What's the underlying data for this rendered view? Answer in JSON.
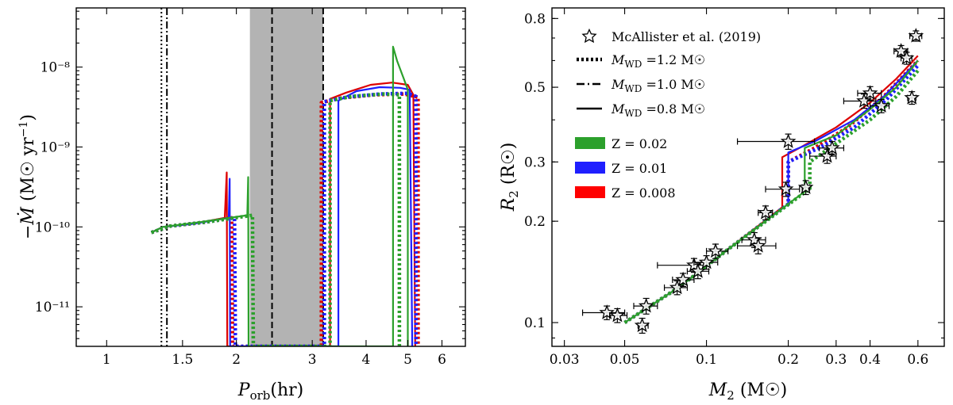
{
  "chart_data": [
    {
      "type": "line",
      "xlabel": "P_orb (hr)",
      "ylabel": "-Ṁ (M☉ yr⁻¹)",
      "xscale": "log",
      "yscale": "log",
      "xlim": [
        0.85,
        6.8
      ],
      "ylim": [
        3.2e-12,
        5.5e-08
      ],
      "x_ticks": [
        {
          "v": 1,
          "label": "1"
        },
        {
          "v": 1.5,
          "label": "1.5"
        },
        {
          "v": 2,
          "label": "2"
        },
        {
          "v": 3,
          "label": "3"
        },
        {
          "v": 4,
          "label": "4"
        },
        {
          "v": 5,
          "label": "5"
        },
        {
          "v": 6,
          "label": "6"
        }
      ],
      "y_ticks": [
        {
          "v": 1e-11,
          "label": "10⁻¹¹"
        },
        {
          "v": 1e-10,
          "label": "10⁻¹⁰"
        },
        {
          "v": 1e-09,
          "label": "10⁻⁹"
        },
        {
          "v": 1e-08,
          "label": "10⁻⁸"
        }
      ],
      "shaded_band": [
        2.15,
        3.18
      ],
      "vertical_lines": [
        {
          "x": 1.34,
          "style": "dotted"
        },
        {
          "x": 1.38,
          "style": "dashdot"
        },
        {
          "x": 2.42,
          "style": "dashed"
        },
        {
          "x": 3.18,
          "style": "dashed"
        }
      ],
      "colors": {
        "Z=0.02": "#2ca02c",
        "Z=0.01": "#1f1fff",
        "Z=0.008": "#dd0000"
      },
      "series": [
        {
          "Z": "0.008",
          "wd": "0.8",
          "color": "#dd0000",
          "style": "solid",
          "points": [
            [
              1.27,
              8.5e-11
            ],
            [
              1.35,
              1e-10
            ],
            [
              1.6,
              1.1e-10
            ],
            [
              1.88,
              1.3e-10
            ],
            [
              1.9,
              4.8e-10
            ],
            [
              1.905,
              3.2e-12
            ],
            [
              3.3,
              3.2e-12
            ],
            [
              3.3,
              4e-09
            ],
            [
              3.6,
              4.8e-09
            ],
            [
              4.1,
              6e-09
            ],
            [
              4.6,
              6.4e-09
            ],
            [
              5.0,
              6e-09
            ],
            [
              5.15,
              4.5e-09
            ],
            [
              5.2,
              3.2e-12
            ]
          ]
        },
        {
          "Z": "0.008",
          "wd": "1.2",
          "color": "#dd0000",
          "style": "dotted",
          "points": [
            [
              1.27,
              8.5e-11
            ],
            [
              1.4,
              1.02e-10
            ],
            [
              1.7,
              1.15e-10
            ],
            [
              1.95,
              1.3e-10
            ],
            [
              1.96,
              3.2e-12
            ],
            [
              3.15,
              3.2e-12
            ],
            [
              3.15,
              3.6e-09
            ],
            [
              3.5,
              4.1e-09
            ],
            [
              4.2,
              4.5e-09
            ],
            [
              4.9,
              4.6e-09
            ],
            [
              5.28,
              4.2e-09
            ],
            [
              5.28,
              3.2e-12
            ]
          ]
        },
        {
          "Z": "0.01",
          "wd": "0.8",
          "color": "#1f1fff",
          "style": "solid",
          "points": [
            [
              1.27,
              8.5e-11
            ],
            [
              1.35,
              1e-10
            ],
            [
              1.6,
              1.1e-10
            ],
            [
              1.92,
              1.3e-10
            ],
            [
              1.93,
              4e-10
            ],
            [
              1.935,
              3.2e-12
            ],
            [
              3.45,
              3.2e-12
            ],
            [
              3.45,
              3.8e-09
            ],
            [
              3.8,
              5e-09
            ],
            [
              4.3,
              5.6e-09
            ],
            [
              4.8,
              5.5e-09
            ],
            [
              5.05,
              5.2e-09
            ],
            [
              5.12,
              3.2e-12
            ]
          ]
        },
        {
          "Z": "0.01",
          "wd": "1.2",
          "color": "#1f1fff",
          "style": "dotted",
          "points": [
            [
              1.27,
              8.5e-11
            ],
            [
              1.4,
              1.02e-10
            ],
            [
              1.7,
              1.15e-10
            ],
            [
              1.98,
              1.3e-10
            ],
            [
              1.99,
              3.2e-12
            ],
            [
              3.2,
              3.2e-12
            ],
            [
              3.2,
              3.7e-09
            ],
            [
              3.6,
              4.2e-09
            ],
            [
              4.3,
              4.6e-09
            ],
            [
              5.0,
              4.7e-09
            ],
            [
              5.22,
              4.3e-09
            ],
            [
              5.22,
              3.2e-12
            ]
          ]
        },
        {
          "Z": "0.02",
          "wd": "0.8",
          "color": "#2ca02c",
          "style": "solid",
          "points": [
            [
              1.27,
              8.5e-11
            ],
            [
              1.35,
              1e-10
            ],
            [
              1.65,
              1.15e-10
            ],
            [
              2.12,
              1.4e-10
            ],
            [
              2.13,
              4.2e-10
            ],
            [
              2.135,
              3.2e-12
            ],
            [
              4.62,
              3.2e-12
            ],
            [
              4.62,
              1.8e-08
            ],
            [
              4.72,
              1.2e-08
            ],
            [
              4.9,
              7e-09
            ],
            [
              5.0,
              5.2e-09
            ],
            [
              5.0,
              3.2e-12
            ]
          ]
        },
        {
          "Z": "0.02",
          "wd": "1.2",
          "color": "#2ca02c",
          "style": "dotted",
          "points": [
            [
              1.27,
              8.5e-11
            ],
            [
              1.4,
              1.02e-10
            ],
            [
              1.7,
              1.15e-10
            ],
            [
              2.18,
              1.4e-10
            ],
            [
              2.19,
              3.2e-12
            ],
            [
              3.3,
              3.2e-12
            ],
            [
              3.3,
              3.8e-09
            ],
            [
              3.7,
              4.3e-09
            ],
            [
              4.4,
              4.6e-09
            ],
            [
              4.78,
              4.5e-09
            ],
            [
              4.78,
              3.2e-12
            ]
          ]
        }
      ]
    },
    {
      "type": "scatter",
      "xlabel": "M₂ (M☉)",
      "ylabel": "R₂ (R☉)",
      "xscale": "log",
      "yscale": "log",
      "xlim": [
        0.027,
        0.75
      ],
      "ylim": [
        0.085,
        0.86
      ],
      "x_ticks": [
        {
          "v": 0.03,
          "label": "0.03"
        },
        {
          "v": 0.05,
          "label": "0.05"
        },
        {
          "v": 0.1,
          "label": "0.1"
        },
        {
          "v": 0.2,
          "label": "0.2"
        },
        {
          "v": 0.3,
          "label": "0.3"
        },
        {
          "v": 0.4,
          "label": "0.4"
        },
        {
          "v": 0.6,
          "label": "0.6"
        }
      ],
      "y_ticks": [
        {
          "v": 0.1,
          "label": "0.1"
        },
        {
          "v": 0.2,
          "label": "0.2"
        },
        {
          "v": 0.3,
          "label": "0.3"
        },
        {
          "v": 0.5,
          "label": "0.5"
        },
        {
          "v": 0.8,
          "label": "0.8"
        }
      ],
      "legend": {
        "placement": "top-left",
        "entries": [
          {
            "label": "McAllister et al. (2019)",
            "kind": "star"
          },
          {
            "label": "M_WD =1.2 M☉",
            "kind": "line",
            "style": "dotted"
          },
          {
            "label": "M_WD =1.0 M☉",
            "kind": "line",
            "style": "dashdot"
          },
          {
            "label": "M_WD =0.8 M☉",
            "kind": "line",
            "style": "solid"
          },
          {
            "label": "Z = 0.02",
            "kind": "patch",
            "color": "#2ca02c"
          },
          {
            "label": "Z = 0.01",
            "kind": "patch",
            "color": "#1f1fff"
          },
          {
            "label": "Z = 0.008",
            "kind": "patch",
            "color": "#ff0000"
          }
        ]
      },
      "observations": [
        {
          "m": 0.043,
          "r": 0.107,
          "mlo": 0.035,
          "mhi": 0.05,
          "rerr": 0.005
        },
        {
          "m": 0.047,
          "r": 0.105,
          "mlo": 0.044,
          "mhi": 0.051,
          "rerr": 0.005
        },
        {
          "m": 0.058,
          "r": 0.098,
          "mlo": 0.056,
          "mhi": 0.061,
          "rerr": 0.005
        },
        {
          "m": 0.06,
          "r": 0.112,
          "mlo": 0.054,
          "mhi": 0.066,
          "rerr": 0.006
        },
        {
          "m": 0.078,
          "r": 0.127,
          "mlo": 0.07,
          "mhi": 0.085,
          "rerr": 0.006
        },
        {
          "m": 0.082,
          "r": 0.134,
          "mlo": 0.075,
          "mhi": 0.09,
          "rerr": 0.006
        },
        {
          "m": 0.09,
          "r": 0.148,
          "mlo": 0.066,
          "mhi": 0.1,
          "rerr": 0.007
        },
        {
          "m": 0.093,
          "r": 0.142,
          "mlo": 0.085,
          "mhi": 0.102,
          "rerr": 0.007
        },
        {
          "m": 0.1,
          "r": 0.151,
          "mlo": 0.09,
          "mhi": 0.11,
          "rerr": 0.007
        },
        {
          "m": 0.108,
          "r": 0.163,
          "mlo": 0.1,
          "mhi": 0.12,
          "rerr": 0.008
        },
        {
          "m": 0.15,
          "r": 0.176,
          "mlo": 0.135,
          "mhi": 0.165,
          "rerr": 0.009
        },
        {
          "m": 0.155,
          "r": 0.169,
          "mlo": 0.13,
          "mhi": 0.18,
          "rerr": 0.009
        },
        {
          "m": 0.165,
          "r": 0.212,
          "mlo": 0.155,
          "mhi": 0.175,
          "rerr": 0.01
        },
        {
          "m": 0.196,
          "r": 0.249,
          "mlo": 0.165,
          "mhi": 0.22,
          "rerr": 0.012
        },
        {
          "m": 0.232,
          "r": 0.252,
          "mlo": 0.225,
          "mhi": 0.24,
          "rerr": 0.012
        },
        {
          "m": 0.2,
          "r": 0.345,
          "mlo": 0.13,
          "mhi": 0.25,
          "rerr": 0.018
        },
        {
          "m": 0.278,
          "r": 0.312,
          "mlo": 0.24,
          "mhi": 0.3,
          "rerr": 0.015
        },
        {
          "m": 0.29,
          "r": 0.33,
          "mlo": 0.26,
          "mhi": 0.32,
          "rerr": 0.015
        },
        {
          "m": 0.38,
          "r": 0.455,
          "mlo": 0.32,
          "mhi": 0.42,
          "rerr": 0.022
        },
        {
          "m": 0.4,
          "r": 0.48,
          "mlo": 0.36,
          "mhi": 0.44,
          "rerr": 0.022
        },
        {
          "m": 0.44,
          "r": 0.44,
          "mlo": 0.4,
          "mhi": 0.47,
          "rerr": 0.02
        },
        {
          "m": 0.52,
          "r": 0.64,
          "mlo": 0.49,
          "mhi": 0.55,
          "rerr": 0.025
        },
        {
          "m": 0.545,
          "r": 0.61,
          "mlo": 0.52,
          "mhi": 0.57,
          "rerr": 0.025
        },
        {
          "m": 0.57,
          "r": 0.465,
          "mlo": 0.55,
          "mhi": 0.59,
          "rerr": 0.02
        },
        {
          "m": 0.59,
          "r": 0.71,
          "mlo": 0.56,
          "mhi": 0.62,
          "rerr": 0.025
        }
      ],
      "series": [
        {
          "Z": "0.008",
          "wd": "0.8",
          "color": "#dd0000",
          "style": "solid",
          "points": [
            [
              0.05,
              0.1
            ],
            [
              0.08,
              0.128
            ],
            [
              0.12,
              0.165
            ],
            [
              0.19,
              0.22
            ],
            [
              0.19,
              0.31
            ],
            [
              0.22,
              0.33
            ],
            [
              0.3,
              0.38
            ],
            [
              0.4,
              0.45
            ],
            [
              0.5,
              0.53
            ],
            [
              0.6,
              0.62
            ]
          ]
        },
        {
          "Z": "0.008",
          "wd": "1.2",
          "color": "#dd0000",
          "style": "dotted",
          "points": [
            [
              0.05,
              0.1
            ],
            [
              0.08,
              0.128
            ],
            [
              0.12,
              0.165
            ],
            [
              0.2,
              0.225
            ],
            [
              0.2,
              0.3
            ],
            [
              0.25,
              0.33
            ],
            [
              0.33,
              0.38
            ],
            [
              0.45,
              0.47
            ],
            [
              0.6,
              0.6
            ]
          ]
        },
        {
          "Z": "0.01",
          "wd": "0.8",
          "color": "#1f1fff",
          "style": "solid",
          "points": [
            [
              0.05,
              0.1
            ],
            [
              0.08,
              0.128
            ],
            [
              0.12,
              0.165
            ],
            [
              0.2,
              0.225
            ],
            [
              0.2,
              0.32
            ],
            [
              0.25,
              0.345
            ],
            [
              0.35,
              0.4
            ],
            [
              0.45,
              0.47
            ],
            [
              0.6,
              0.6
            ]
          ]
        },
        {
          "Z": "0.01",
          "wd": "1.2",
          "color": "#1f1fff",
          "style": "dotted",
          "points": [
            [
              0.05,
              0.1
            ],
            [
              0.08,
              0.128
            ],
            [
              0.12,
              0.165
            ],
            [
              0.2,
              0.225
            ],
            [
              0.2,
              0.3
            ],
            [
              0.26,
              0.33
            ],
            [
              0.35,
              0.38
            ],
            [
              0.46,
              0.46
            ],
            [
              0.6,
              0.58
            ]
          ]
        },
        {
          "Z": "0.02",
          "wd": "0.8",
          "color": "#2ca02c",
          "style": "solid",
          "points": [
            [
              0.05,
              0.1
            ],
            [
              0.08,
              0.128
            ],
            [
              0.12,
              0.165
            ],
            [
              0.23,
              0.245
            ],
            [
              0.23,
              0.33
            ],
            [
              0.3,
              0.36
            ],
            [
              0.4,
              0.43
            ],
            [
              0.5,
              0.5
            ],
            [
              0.6,
              0.6
            ]
          ]
        },
        {
          "Z": "0.02",
          "wd": "1.2",
          "color": "#2ca02c",
          "style": "dotted",
          "points": [
            [
              0.05,
              0.1
            ],
            [
              0.08,
              0.128
            ],
            [
              0.12,
              0.165
            ],
            [
              0.24,
              0.25
            ],
            [
              0.24,
              0.3
            ],
            [
              0.3,
              0.34
            ],
            [
              0.4,
              0.4
            ],
            [
              0.5,
              0.47
            ],
            [
              0.6,
              0.56
            ]
          ]
        }
      ]
    }
  ]
}
